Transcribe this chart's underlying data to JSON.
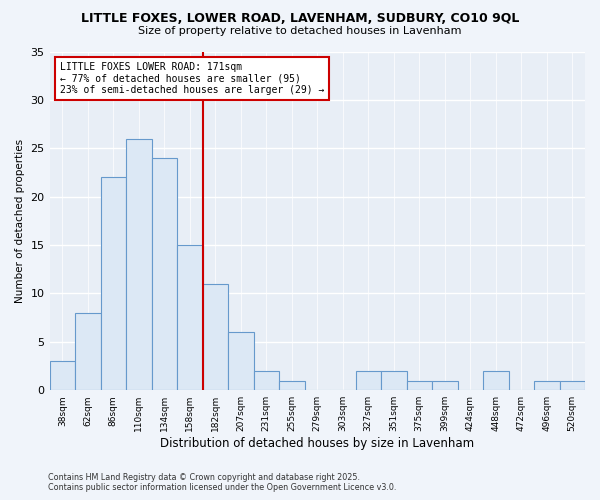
{
  "title": "LITTLE FOXES, LOWER ROAD, LAVENHAM, SUDBURY, CO10 9QL",
  "subtitle": "Size of property relative to detached houses in Lavenham",
  "xlabel": "Distribution of detached houses by size in Lavenham",
  "ylabel": "Number of detached properties",
  "bin_labels": [
    "38sqm",
    "62sqm",
    "86sqm",
    "110sqm",
    "134sqm",
    "158sqm",
    "182sqm",
    "207sqm",
    "231sqm",
    "255sqm",
    "279sqm",
    "303sqm",
    "327sqm",
    "351sqm",
    "375sqm",
    "399sqm",
    "424sqm",
    "448sqm",
    "472sqm",
    "496sqm",
    "520sqm"
  ],
  "bar_values": [
    3,
    8,
    22,
    26,
    24,
    15,
    11,
    6,
    2,
    1,
    0,
    0,
    2,
    2,
    1,
    1,
    0,
    2,
    0,
    1,
    1
  ],
  "bar_color": "#dce8f5",
  "bar_edge_color": "#6699cc",
  "marker_bin_index": 5.5,
  "marker_line_color": "#cc0000",
  "annotation_text": "LITTLE FOXES LOWER ROAD: 171sqm\n← 77% of detached houses are smaller (95)\n23% of semi-detached houses are larger (29) →",
  "annotation_box_color": "#ffffff",
  "annotation_box_edge_color": "#cc0000",
  "ylim": [
    0,
    35
  ],
  "yticks": [
    0,
    5,
    10,
    15,
    20,
    25,
    30,
    35
  ],
  "footer1": "Contains HM Land Registry data © Crown copyright and database right 2025.",
  "footer2": "Contains public sector information licensed under the Open Government Licence v3.0.",
  "bg_color": "#f0f4fa",
  "plot_bg_color": "#e8eef6",
  "grid_color": "#ffffff"
}
